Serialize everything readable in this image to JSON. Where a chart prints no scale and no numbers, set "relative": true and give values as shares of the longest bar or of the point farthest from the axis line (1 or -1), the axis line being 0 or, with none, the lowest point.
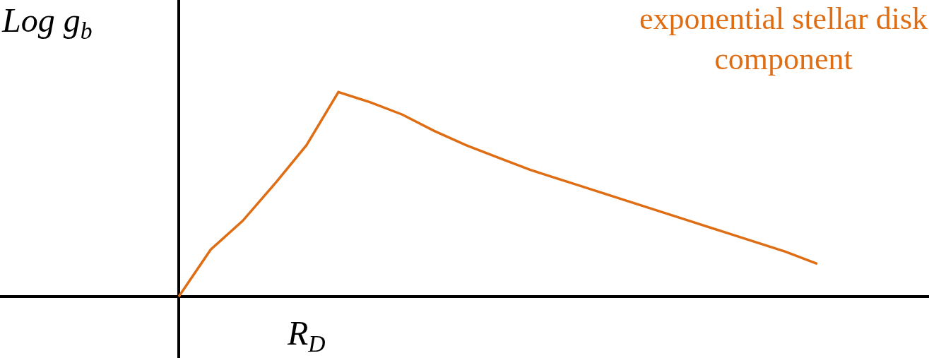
{
  "chart_data": {
    "type": "line",
    "relative": true,
    "xlabel": "R$_{D}$",
    "ylabel": "Log g$_{b}$",
    "categories": [
      null,
      null,
      null,
      null,
      null,
      null,
      null,
      null,
      null,
      null,
      null,
      null,
      null,
      null,
      null,
      null,
      null,
      null,
      null,
      null,
      null,
      null,
      null
    ],
    "series": [
      {
        "name": "exponential stellar disk component",
        "color": "#df6d14",
        "values": [
          0,
          0.23,
          0.37,
          0.55,
          0.74,
          1,
          0.95,
          0.89,
          0.81,
          0.74,
          0.68,
          0.62,
          0.57,
          0.52,
          0.47,
          0.42,
          0.37,
          0.32,
          0.27,
          0.22,
          0.16,
          null,
          null
        ]
      }
    ],
    "grid": false,
    "legend": false,
    "marker": "none",
    "line_style": "solid"
  }
}
